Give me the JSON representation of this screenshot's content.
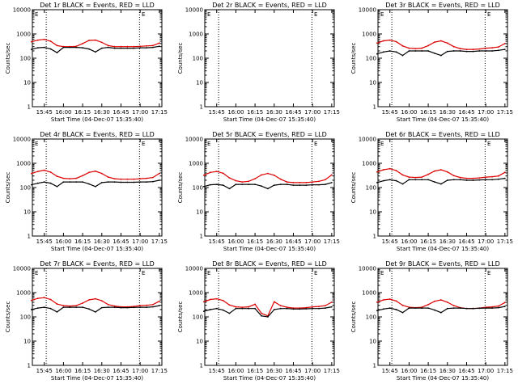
{
  "colors": {
    "events": "#000000",
    "lld": "#dd0000",
    "axes": "#000000",
    "background": "#ffffff"
  },
  "shared": {
    "ylabel": "Counts/sec",
    "xlabel": "Start Time (04-Dec-07 15:35:40)",
    "x_tick_labels": [
      "15:45",
      "16:00",
      "16:15",
      "16:30",
      "16:45",
      "17:00",
      "17:15"
    ],
    "y_tick_labels": [
      "1",
      "10",
      "100",
      "1000",
      "10000"
    ],
    "corner_marks": [
      "E",
      "E"
    ]
  },
  "chart_data": [
    {
      "type": "line",
      "title": "Det 1r BLACK = Events, RED = LLD",
      "ylabel": "Counts/sec",
      "xlabel": "Start Time (04-Dec-07 15:35:40)",
      "yscale": "log",
      "ylim": [
        1,
        10000
      ],
      "xlim": [
        "15:35:40",
        "17:17"
      ],
      "grid": false,
      "x": [
        "15:35",
        "15:40",
        "15:45",
        "15:50",
        "15:55",
        "16:00",
        "16:05",
        "16:10",
        "16:15",
        "16:20",
        "16:25",
        "16:30",
        "16:35",
        "16:40",
        "16:45",
        "16:50",
        "16:55",
        "17:00",
        "17:05",
        "17:10",
        "17:15"
      ],
      "series": [
        {
          "name": "Events",
          "values": [
            230,
            270,
            280,
            240,
            170,
            280,
            280,
            280,
            270,
            240,
            180,
            260,
            280,
            260,
            260,
            260,
            260,
            270,
            270,
            280,
            310
          ]
        },
        {
          "name": "LLD",
          "values": [
            480,
            560,
            600,
            500,
            330,
            300,
            300,
            310,
            400,
            540,
            560,
            450,
            330,
            300,
            300,
            300,
            300,
            310,
            320,
            330,
            420
          ]
        }
      ]
    },
    {
      "type": "line",
      "title": "Det 2r BLACK = Events, RED = LLD",
      "ylabel": "Counts/sec",
      "xlabel": "Start Time (04-Dec-07 15:35:40)",
      "yscale": "log",
      "ylim": [
        1,
        10000
      ],
      "xlim": [
        "15:35:40",
        "17:17"
      ],
      "grid": false,
      "x": [],
      "series": []
    },
    {
      "type": "line",
      "title": "Det 3r BLACK = Events, RED = LLD",
      "ylabel": "Counts/sec",
      "xlabel": "Start Time (04-Dec-07 15:35:40)",
      "yscale": "log",
      "ylim": [
        1,
        10000
      ],
      "xlim": [
        "15:35:40",
        "17:17"
      ],
      "grid": false,
      "x": [
        "15:35",
        "15:40",
        "15:45",
        "15:50",
        "15:55",
        "16:00",
        "16:05",
        "16:10",
        "16:15",
        "16:20",
        "16:25",
        "16:30",
        "16:35",
        "16:40",
        "16:45",
        "16:50",
        "16:55",
        "17:00",
        "17:05",
        "17:10",
        "17:15"
      ],
      "series": [
        {
          "name": "Events",
          "values": [
            150,
            180,
            200,
            180,
            130,
            200,
            200,
            200,
            200,
            160,
            130,
            190,
            200,
            200,
            190,
            190,
            200,
            200,
            200,
            210,
            230
          ]
        },
        {
          "name": "LLD",
          "values": [
            420,
            520,
            560,
            480,
            320,
            260,
            250,
            260,
            330,
            460,
            520,
            420,
            300,
            250,
            230,
            230,
            240,
            260,
            270,
            290,
            400
          ]
        }
      ]
    },
    {
      "type": "line",
      "title": "Det 4r BLACK = Events, RED = LLD",
      "ylabel": "Counts/sec",
      "xlabel": "Start Time (04-Dec-07 15:35:40)",
      "yscale": "log",
      "ylim": [
        1,
        10000
      ],
      "xlim": [
        "15:35:40",
        "17:17"
      ],
      "grid": false,
      "x": [
        "15:35",
        "15:40",
        "15:45",
        "15:50",
        "15:55",
        "16:00",
        "16:05",
        "16:10",
        "16:15",
        "16:20",
        "16:25",
        "16:30",
        "16:35",
        "16:40",
        "16:45",
        "16:50",
        "16:55",
        "17:00",
        "17:05",
        "17:10",
        "17:15"
      ],
      "series": [
        {
          "name": "Events",
          "values": [
            130,
            150,
            170,
            150,
            110,
            170,
            170,
            170,
            170,
            140,
            110,
            160,
            170,
            170,
            165,
            165,
            165,
            170,
            170,
            175,
            200
          ]
        },
        {
          "name": "LLD",
          "values": [
            380,
            460,
            520,
            430,
            290,
            240,
            230,
            240,
            310,
            420,
            470,
            380,
            270,
            230,
            220,
            220,
            220,
            230,
            240,
            260,
            380
          ]
        }
      ]
    },
    {
      "type": "line",
      "title": "Det 5r BLACK = Events, RED = LLD",
      "ylabel": "Counts/sec",
      "xlabel": "Start Time (04-Dec-07 15:35:40)",
      "yscale": "log",
      "ylim": [
        1,
        10000
      ],
      "xlim": [
        "15:35:40",
        "17:17"
      ],
      "grid": false,
      "x": [
        "15:35",
        "15:40",
        "15:45",
        "15:50",
        "15:55",
        "16:00",
        "16:05",
        "16:10",
        "16:15",
        "16:20",
        "16:25",
        "16:30",
        "16:35",
        "16:40",
        "16:45",
        "16:50",
        "16:55",
        "17:00",
        "17:05",
        "17:10",
        "17:15"
      ],
      "series": [
        {
          "name": "Events",
          "values": [
            110,
            130,
            135,
            125,
            90,
            135,
            135,
            135,
            135,
            115,
            90,
            125,
            135,
            135,
            125,
            125,
            125,
            130,
            130,
            135,
            160
          ]
        },
        {
          "name": "LLD",
          "values": [
            320,
            420,
            460,
            390,
            250,
            190,
            170,
            180,
            230,
            330,
            380,
            320,
            220,
            170,
            160,
            160,
            160,
            170,
            180,
            210,
            330
          ]
        }
      ]
    },
    {
      "type": "line",
      "title": "Det 6r BLACK = Events, RED = LLD",
      "ylabel": "Counts/sec",
      "xlabel": "Start Time (04-Dec-07 15:35:40)",
      "yscale": "log",
      "ylim": [
        1,
        10000
      ],
      "xlim": [
        "15:35:40",
        "17:17"
      ],
      "grid": false,
      "x": [
        "15:35",
        "15:40",
        "15:45",
        "15:50",
        "15:55",
        "16:00",
        "16:05",
        "16:10",
        "16:15",
        "16:20",
        "16:25",
        "16:30",
        "16:35",
        "16:40",
        "16:45",
        "16:50",
        "16:55",
        "17:00",
        "17:05",
        "17:10",
        "17:15"
      ],
      "series": [
        {
          "name": "Events",
          "values": [
            160,
            190,
            210,
            190,
            140,
            210,
            210,
            210,
            210,
            170,
            140,
            200,
            210,
            210,
            200,
            200,
            205,
            210,
            210,
            220,
            240
          ]
        },
        {
          "name": "LLD",
          "values": [
            440,
            540,
            600,
            500,
            330,
            270,
            260,
            270,
            350,
            480,
            540,
            440,
            310,
            260,
            240,
            240,
            250,
            270,
            280,
            300,
            420
          ]
        }
      ]
    },
    {
      "type": "line",
      "title": "Det 7r BLACK = Events, RED = LLD",
      "ylabel": "Counts/sec",
      "xlabel": "Start Time (04-Dec-07 15:35:40)",
      "yscale": "log",
      "ylim": [
        1,
        10000
      ],
      "xlim": [
        "15:35:40",
        "17:17"
      ],
      "grid": false,
      "x": [
        "15:35",
        "15:40",
        "15:45",
        "15:50",
        "15:55",
        "16:00",
        "16:05",
        "16:10",
        "16:15",
        "16:20",
        "16:25",
        "16:30",
        "16:35",
        "16:40",
        "16:45",
        "16:50",
        "16:55",
        "17:00",
        "17:05",
        "17:10",
        "17:15"
      ],
      "series": [
        {
          "name": "Events",
          "values": [
            200,
            230,
            250,
            220,
            160,
            250,
            250,
            250,
            250,
            210,
            160,
            240,
            250,
            250,
            240,
            240,
            245,
            250,
            250,
            260,
            290
          ]
        },
        {
          "name": "LLD",
          "values": [
            480,
            580,
            620,
            520,
            340,
            290,
            280,
            290,
            370,
            500,
            560,
            460,
            320,
            280,
            260,
            260,
            270,
            290,
            300,
            320,
            440
          ]
        }
      ]
    },
    {
      "type": "line",
      "title": "Det 8r BLACK = Events, RED = LLD",
      "ylabel": "Counts/sec",
      "xlabel": "Start Time (04-Dec-07 15:35:40)",
      "yscale": "log",
      "ylim": [
        1,
        10000
      ],
      "xlim": [
        "15:35:40",
        "17:17"
      ],
      "grid": false,
      "x": [
        "15:35",
        "15:40",
        "15:45",
        "15:50",
        "15:55",
        "16:00",
        "16:05",
        "16:10",
        "16:15",
        "16:20",
        "16:25",
        "16:30",
        "16:35",
        "16:40",
        "16:45",
        "16:50",
        "16:55",
        "17:00",
        "17:05",
        "17:10",
        "17:15"
      ],
      "series": [
        {
          "name": "Events",
          "values": [
            170,
            200,
            220,
            190,
            140,
            220,
            220,
            220,
            220,
            110,
            100,
            200,
            220,
            220,
            210,
            210,
            215,
            220,
            220,
            230,
            260
          ]
        },
        {
          "name": "LLD",
          "values": [
            420,
            520,
            560,
            470,
            310,
            260,
            250,
            260,
            330,
            140,
            110,
            420,
            290,
            250,
            230,
            230,
            240,
            260,
            270,
            290,
            400
          ]
        }
      ]
    },
    {
      "type": "line",
      "title": "Det 9r BLACK = Events, RED = LLD",
      "ylabel": "Counts/sec",
      "xlabel": "Start Time (04-Dec-07 15:35:40)",
      "yscale": "log",
      "ylim": [
        1,
        10000
      ],
      "xlim": [
        "15:35:40",
        "17:17"
      ],
      "grid": false,
      "x": [
        "15:35",
        "15:40",
        "15:45",
        "15:50",
        "15:55",
        "16:00",
        "16:05",
        "16:10",
        "16:15",
        "16:20",
        "16:25",
        "16:30",
        "16:35",
        "16:40",
        "16:45",
        "16:50",
        "16:55",
        "17:00",
        "17:05",
        "17:10",
        "17:15"
      ],
      "series": [
        {
          "name": "Events",
          "values": [
            180,
            210,
            230,
            200,
            150,
            230,
            230,
            230,
            230,
            190,
            150,
            220,
            230,
            230,
            220,
            220,
            225,
            230,
            230,
            240,
            270
          ]
        },
        {
          "name": "LLD",
          "values": [
            400,
            500,
            540,
            450,
            300,
            250,
            240,
            250,
            320,
            440,
            500,
            400,
            290,
            240,
            220,
            220,
            230,
            250,
            260,
            280,
            390
          ]
        }
      ]
    }
  ]
}
